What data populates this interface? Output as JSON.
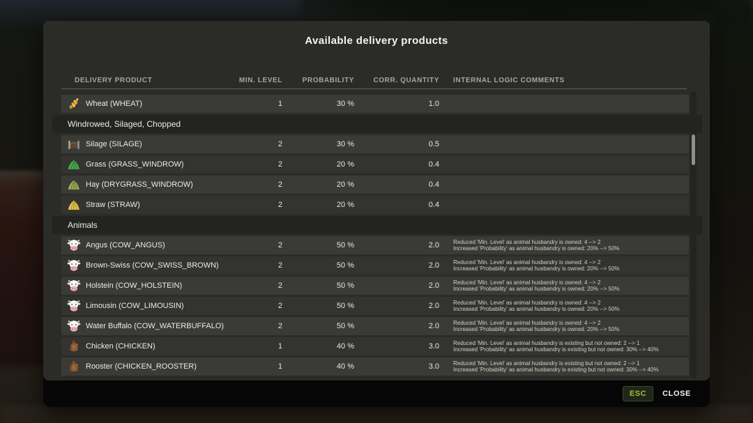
{
  "dialog": {
    "title": "Available delivery products"
  },
  "table": {
    "columns": [
      "DELIVERY PRODUCT",
      "MIN. LEVEL",
      "PROBABILITY",
      "CORR. QUANTITY",
      "INTERNAL LOGIC COMMENTS"
    ],
    "rows": [
      {
        "type": "item",
        "icon": "wheat-icon",
        "name": "Wheat (WHEAT)",
        "min_level": "1",
        "probability": "30 %",
        "corr_quantity": "1.0",
        "comments": []
      },
      {
        "type": "section",
        "label": "Windrowed, Silaged, Chopped"
      },
      {
        "type": "item",
        "icon": "silage-icon",
        "name": "Silage (SILAGE)",
        "min_level": "2",
        "probability": "30 %",
        "corr_quantity": "0.5",
        "comments": []
      },
      {
        "type": "item",
        "icon": "grass-icon",
        "name": "Grass (GRASS_WINDROW)",
        "min_level": "2",
        "probability": "20 %",
        "corr_quantity": "0.4",
        "comments": []
      },
      {
        "type": "item",
        "icon": "hay-icon",
        "name": "Hay (DRYGRASS_WINDROW)",
        "min_level": "2",
        "probability": "20 %",
        "corr_quantity": "0.4",
        "comments": []
      },
      {
        "type": "item",
        "icon": "straw-icon",
        "name": "Straw (STRAW)",
        "min_level": "2",
        "probability": "20 %",
        "corr_quantity": "0.4",
        "comments": []
      },
      {
        "type": "section",
        "label": "Animals"
      },
      {
        "type": "item",
        "icon": "cow-icon",
        "name": "Angus (COW_ANGUS)",
        "min_level": "2",
        "probability": "50 %",
        "corr_quantity": "2.0",
        "comments": [
          "Reduced 'Min. Level' as animal husbandry is owned: 4 --> 2",
          "Increased 'Probability' as animal husbandry is owned: 20% --> 50%"
        ]
      },
      {
        "type": "item",
        "icon": "cow-icon",
        "name": "Brown-Swiss (COW_SWISS_BROWN)",
        "min_level": "2",
        "probability": "50 %",
        "corr_quantity": "2.0",
        "comments": [
          "Reduced 'Min. Level' as animal husbandry is owned: 4 --> 2",
          "Increased 'Probability' as animal husbandry is owned: 20% --> 50%"
        ]
      },
      {
        "type": "item",
        "icon": "cow-icon",
        "name": "Holstein (COW_HOLSTEIN)",
        "min_level": "2",
        "probability": "50 %",
        "corr_quantity": "2.0",
        "comments": [
          "Reduced 'Min. Level' as animal husbandry is owned: 4 --> 2",
          "Increased 'Probability' as animal husbandry is owned: 20% --> 50%"
        ]
      },
      {
        "type": "item",
        "icon": "cow-icon",
        "name": "Limousin (COW_LIMOUSIN)",
        "min_level": "2",
        "probability": "50 %",
        "corr_quantity": "2.0",
        "comments": [
          "Reduced 'Min. Level' as animal husbandry is owned: 4 --> 2",
          "Increased 'Probability' as animal husbandry is owned: 20% --> 50%"
        ]
      },
      {
        "type": "item",
        "icon": "cow-icon",
        "name": "Water Buffalo (COW_WATERBUFFALO)",
        "min_level": "2",
        "probability": "50 %",
        "corr_quantity": "2.0",
        "comments": [
          "Reduced 'Min. Level' as animal husbandry is owned: 4 --> 2",
          "Increased 'Probability' as animal husbandry is owned: 20% --> 50%"
        ]
      },
      {
        "type": "item",
        "icon": "chicken-icon",
        "name": "Chicken (CHICKEN)",
        "min_level": "1",
        "probability": "40 %",
        "corr_quantity": "3.0",
        "comments": [
          "Reduced 'Min. Level' as animal husbandry is existing but not owned: 2 --> 1",
          "Increased 'Probability' as animal husbandry is existing but not owned: 30% --> 40%"
        ]
      },
      {
        "type": "item",
        "icon": "chicken-icon",
        "name": "Rooster (CHICKEN_ROOSTER)",
        "min_level": "1",
        "probability": "40 %",
        "corr_quantity": "3.0",
        "comments": [
          "Reduced 'Min. Level' as animal husbandry is existing but not owned: 2 --> 1",
          "Increased 'Probability' as animal husbandry is existing but not owned: 30% --> 40%"
        ]
      }
    ]
  },
  "footer": {
    "esc_label": "ESC",
    "close_label": "CLOSE"
  },
  "colors": {
    "esc_accent": "#9ec131",
    "panel": "#2b2b28",
    "row_light": "#3a3a36",
    "row_dark": "#333330"
  }
}
